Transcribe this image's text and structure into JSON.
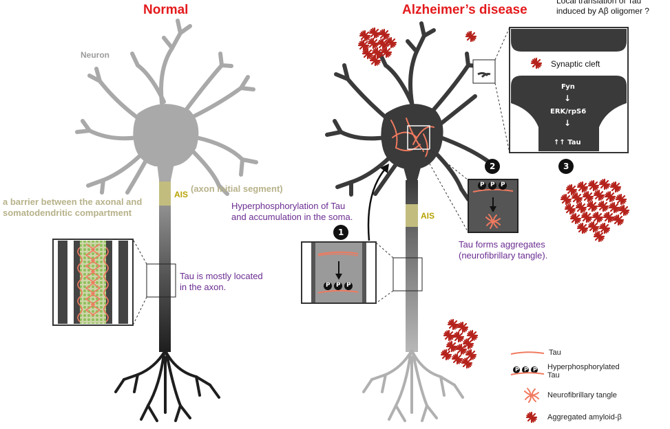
{
  "titles": {
    "normal": "Normal",
    "alzheimer": "Alzheimer’s disease"
  },
  "labels": {
    "neuron": "Neuron",
    "ais_left": "AIS",
    "ais_right": "AIS",
    "ais_full": "(axon initial segment)",
    "barrier_line1": "a barrier between the axonal and",
    "barrier_line2": "somatodendritic compartment",
    "tau_axon_line1": "Tau is mostly located",
    "tau_axon_line2": "in the axon.",
    "hyper_line1": "Hyperphosphorylation of Tau",
    "hyper_line2": "and accumulation in the soma.",
    "aggregates_line1": "Tau forms aggregates",
    "aggregates_line2": "(neurofibrillary tangle).",
    "local_line1": "Local translation of Tau",
    "local_line2": "induced by Aβ oligomer ?"
  },
  "synapse": {
    "cleft": "Synaptic cleft",
    "fyn": "Fyn",
    "erk": "ERK/rpS6",
    "tau": "↑↑ Tau",
    "arrow": "↓"
  },
  "steps": [
    "1",
    "2",
    "3"
  ],
  "phospho_label": "P",
  "legend": {
    "tau": "Tau",
    "hyper_line1": "Hyperphosphorylated",
    "hyper_line2": "Tau",
    "nft": "Neurofibrillary tangle",
    "amyloid": "Aggregated amyloid-β"
  },
  "colors": {
    "title": "#e31a1c",
    "normal_neuron": "#9b9b9b",
    "ad_neuron": "#3a3a3a",
    "ais": "#c2bd7e",
    "tau": "#f07a5f",
    "amyloid": "#b5231c",
    "purple_text": "#6a2c91"
  }
}
